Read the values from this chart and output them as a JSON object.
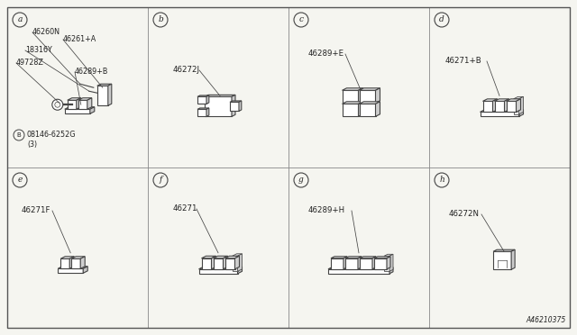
{
  "bg_color": "#f5f5f0",
  "border_color": "#555555",
  "line_color": "#444444",
  "text_color": "#222222",
  "grid_lines_color": "#888888",
  "diagram_id": "A46210375",
  "label_fontsize": 7,
  "part_fontsize": 6.2,
  "diagram_id_fontsize": 5.5,
  "panels": [
    {
      "label": "a",
      "col": 0,
      "row": 0
    },
    {
      "label": "b",
      "col": 1,
      "row": 0
    },
    {
      "label": "c",
      "col": 2,
      "row": 0
    },
    {
      "label": "d",
      "col": 3,
      "row": 0
    },
    {
      "label": "e",
      "col": 0,
      "row": 1
    },
    {
      "label": "f",
      "col": 1,
      "row": 1
    },
    {
      "label": "g",
      "col": 2,
      "row": 1
    },
    {
      "label": "h",
      "col": 3,
      "row": 1
    }
  ]
}
